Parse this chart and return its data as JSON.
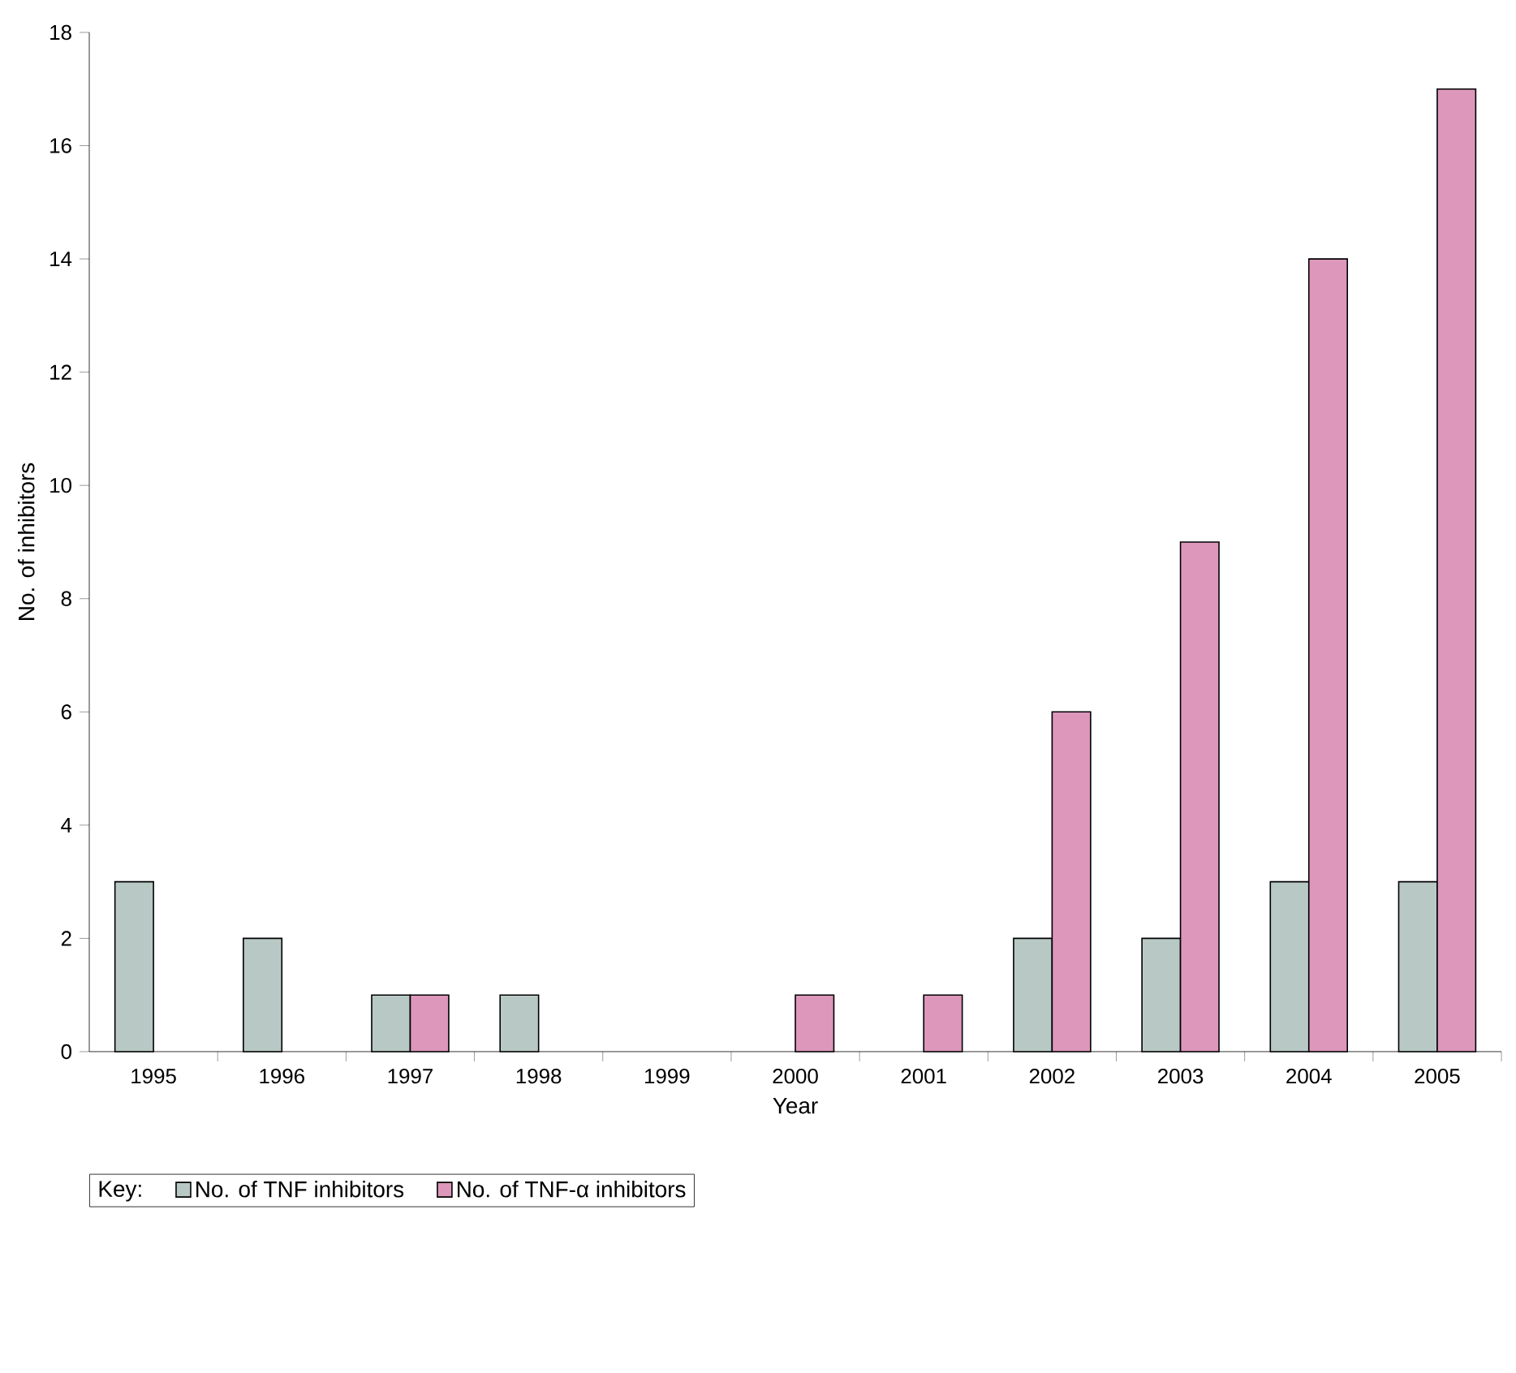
{
  "chart_data": {
    "type": "bar",
    "xlabel": "Year",
    "ylabel": "No. of inhibitors",
    "legend_title": "Key:",
    "categories": [
      "1995",
      "1996",
      "1997",
      "1998",
      "1999",
      "2000",
      "2001",
      "2002",
      "2003",
      "2004",
      "2005"
    ],
    "series": [
      {
        "name": "No. of TNF inhibitors",
        "color": "#b8c9c5",
        "values": [
          3,
          2,
          1,
          1,
          null,
          null,
          null,
          2,
          2,
          3,
          3
        ]
      },
      {
        "name": "No. of TNF-α inhibitors",
        "color": "#dd97bb",
        "values": [
          null,
          null,
          1,
          null,
          null,
          1,
          1,
          6,
          9,
          14,
          17
        ]
      }
    ],
    "ylim": [
      0,
      18
    ],
    "yticks": [
      0,
      2,
      4,
      6,
      8,
      10,
      12,
      14,
      16,
      18
    ],
    "grid": false,
    "legend": "bottom left"
  }
}
